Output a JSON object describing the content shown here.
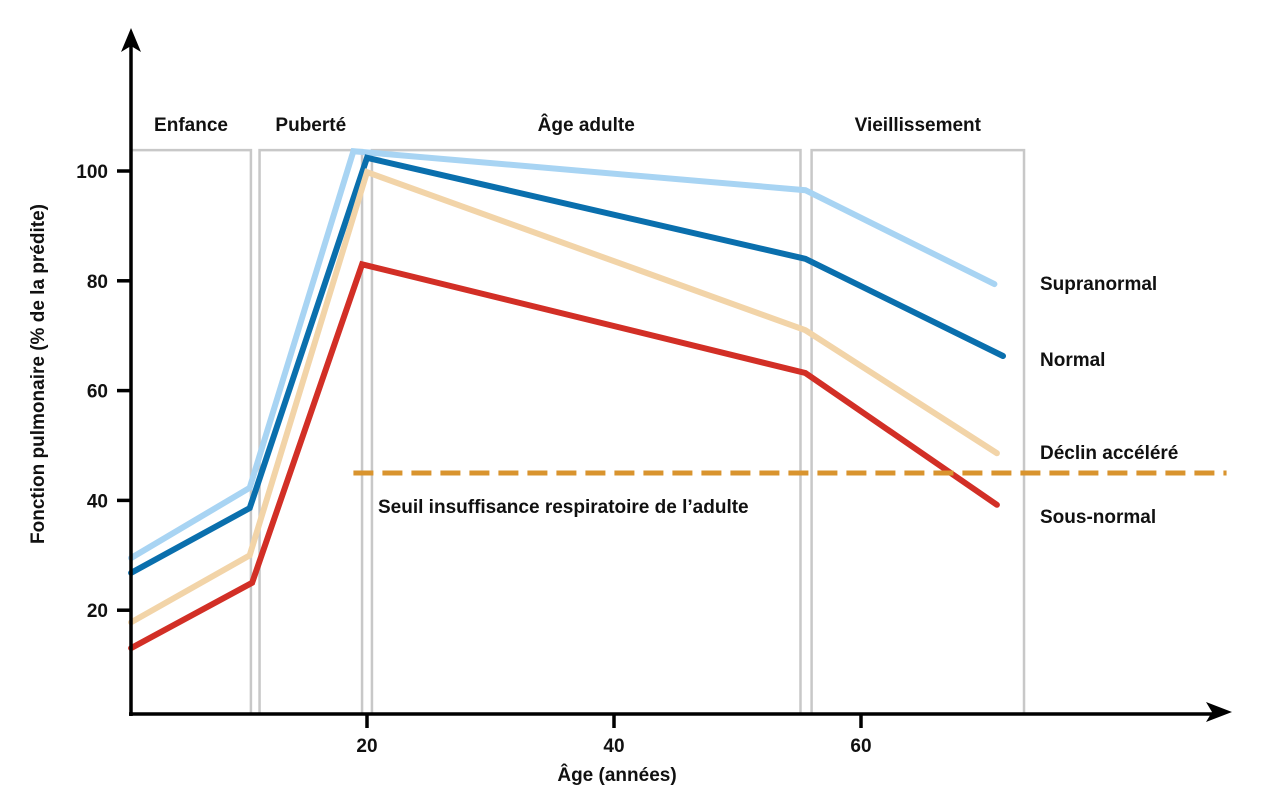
{
  "chart_data": {
    "type": "line",
    "title": "",
    "xlabel": "Âge (années)",
    "ylabel": "Fonction pulmonaire (% de la prédite)",
    "xlim": [
      0,
      90
    ],
    "ylim": [
      0,
      110
    ],
    "grid": false,
    "x_ticks": [
      20,
      40,
      60
    ],
    "x_tick_labels": [
      "20",
      "40",
      "60"
    ],
    "y_ticks": [
      20,
      40,
      60,
      80,
      100
    ],
    "y_tick_labels": [
      "20",
      "40",
      "60",
      "80",
      "100"
    ],
    "legend_placement": "right (line-end labels)",
    "phases": [
      {
        "label": "Enfance",
        "start": 0.9,
        "end": 10.6
      },
      {
        "label": "Puberté",
        "start": 11.3,
        "end": 19.6
      },
      {
        "label": "Âge adulte",
        "start": 20.4,
        "end": 55.1
      },
      {
        "label": "Vieillissement",
        "start": 56.0,
        "end": 73.2
      }
    ],
    "phase_top": 103.8,
    "series": [
      {
        "name": "Supranormal",
        "color": "#a8d4f3",
        "x": [
          0.9,
          10.5,
          18.9,
          55.5,
          70.8
        ],
        "y": [
          29.5,
          42.3,
          103.6,
          96.5,
          79.4
        ]
      },
      {
        "name": "Normal",
        "color": "#0a6fad",
        "x": [
          0.9,
          10.5,
          20.0,
          55.5,
          71.5
        ],
        "y": [
          26.8,
          38.6,
          102.4,
          84.0,
          66.3
        ]
      },
      {
        "name": "Déclin accéléré",
        "color": "#f2d4a8",
        "x": [
          0.9,
          10.5,
          20.0,
          55.5,
          71.0
        ],
        "y": [
          17.8,
          30.0,
          99.8,
          71.0,
          48.6
        ]
      },
      {
        "name": "Sous-normal",
        "color": "#d22f26",
        "x": [
          0.9,
          10.7,
          19.6,
          55.5,
          71.0
        ],
        "y": [
          13.1,
          25.0,
          83.0,
          63.2,
          39.2
        ]
      }
    ],
    "threshold": {
      "label": "Seuil insuffisance respiratoire de l’adulte",
      "value": 45,
      "x_start": 18.9,
      "x_end": 89.6,
      "color": "#d9942e",
      "style": "dashed"
    }
  }
}
